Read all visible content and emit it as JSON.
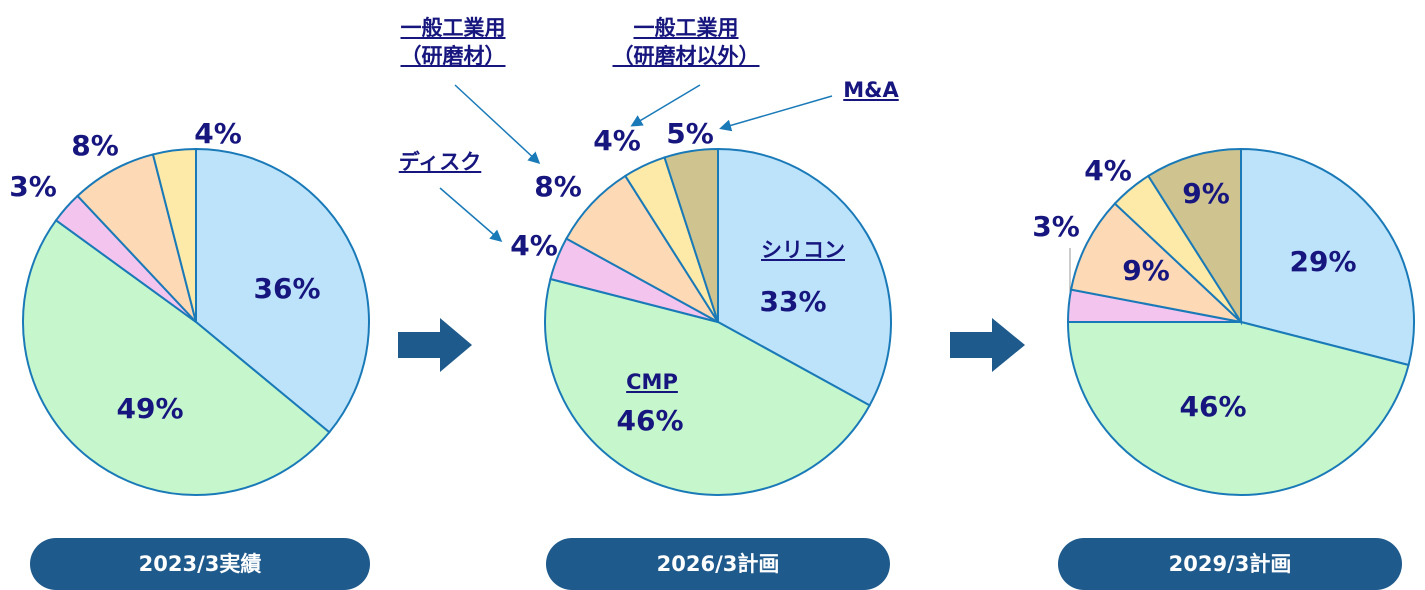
{
  "chart_data": [
    {
      "type": "pie",
      "title": "2023/3実績",
      "values": [
        36,
        49,
        3,
        8,
        4
      ],
      "value_labels": [
        "36%",
        "49%",
        "3%",
        "8%",
        "4%"
      ],
      "colors": [
        "#bde3fb",
        "#c6f7cc",
        "#f2c4ee",
        "#fdd9b5",
        "#fde9a8"
      ]
    },
    {
      "type": "pie",
      "title": "2026/3計画",
      "categories": [
        "シリコン",
        "CMP",
        "ディスク",
        "一般工業用\n（研磨材）",
        "一般工業用\n（研磨材以外）",
        "M&A"
      ],
      "values": [
        33,
        46,
        4,
        8,
        4,
        5
      ],
      "value_labels": [
        "33%",
        "46%",
        "4%",
        "8%",
        "4%",
        "5%"
      ],
      "colors": [
        "#bde3fb",
        "#c6f7cc",
        "#f2c4ee",
        "#fdd9b5",
        "#fde9a8",
        "#cfc48f"
      ]
    },
    {
      "type": "pie",
      "title": "2029/3計画",
      "values": [
        29,
        46,
        3,
        9,
        4,
        9
      ],
      "value_labels": [
        "29%",
        "46%",
        "3%",
        "9%",
        "4%",
        "9%"
      ],
      "colors": [
        "#bde3fb",
        "#c6f7cc",
        "#f2c4ee",
        "#fdd9b5",
        "#fde9a8",
        "#cfc48f"
      ]
    }
  ]
}
